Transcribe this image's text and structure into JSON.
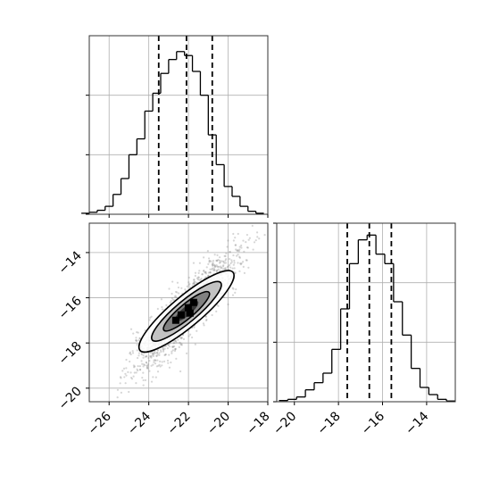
{
  "chart_data": [
    {
      "type": "histogram",
      "panel": "top-left",
      "x": [
        -27.2,
        -26.8,
        -26.4,
        -26.0,
        -25.6,
        -25.2,
        -24.8,
        -24.4,
        -24.0,
        -23.6,
        -23.2,
        -22.8,
        -22.4,
        -22.0,
        -21.6,
        -21.2,
        -20.8,
        -20.4,
        -20.0,
        -19.6,
        -19.2,
        -18.8,
        -18.4
      ],
      "values": [
        0.5,
        1.0,
        2.0,
        4.0,
        10.0,
        18.0,
        30.0,
        38.0,
        52.0,
        61.0,
        71.0,
        78.0,
        82.0,
        80.0,
        72.0,
        60.0,
        40.0,
        25.0,
        14.0,
        9.0,
        4.0,
        1.5,
        0.5
      ],
      "xlim": [
        -27.0,
        -18.0
      ],
      "ylim": [
        0,
        90
      ],
      "quantiles": [
        -23.5,
        -22.1,
        -20.8
      ],
      "grid": true
    },
    {
      "type": "heatmap",
      "panel": "bottom-left",
      "xlim": [
        -27.0,
        -18.0
      ],
      "ylim": [
        -20.6,
        -12.7
      ],
      "xticks": [
        "−26",
        "−24",
        "−22",
        "−20",
        "−18"
      ],
      "yticks": [
        "−20",
        "−18",
        "−16",
        "−14"
      ],
      "correlation": 0.9,
      "center": [
        -22.1,
        -16.6
      ],
      "grid": true
    },
    {
      "type": "histogram",
      "panel": "bottom-right",
      "x": [
        -20.5,
        -20.1,
        -19.7,
        -19.3,
        -18.9,
        -18.5,
        -18.1,
        -17.7,
        -17.3,
        -16.9,
        -16.5,
        -16.1,
        -15.7,
        -15.3,
        -14.9,
        -14.5,
        -14.1,
        -13.7,
        -13.3,
        -12.9
      ],
      "values": [
        0.5,
        1.0,
        2.0,
        5.0,
        8.0,
        12.0,
        22.0,
        39.0,
        58.0,
        68.0,
        70.0,
        62.0,
        58.0,
        42.0,
        28.0,
        14.0,
        6.0,
        3.0,
        1.0,
        0.3
      ],
      "xlim": [
        -20.8,
        -12.7
      ],
      "ylim": [
        0,
        75
      ],
      "quantiles": [
        -17.6,
        -16.6,
        -15.6
      ],
      "xticks": [
        "−20",
        "−18",
        "−16",
        "−14"
      ],
      "grid": true
    }
  ]
}
